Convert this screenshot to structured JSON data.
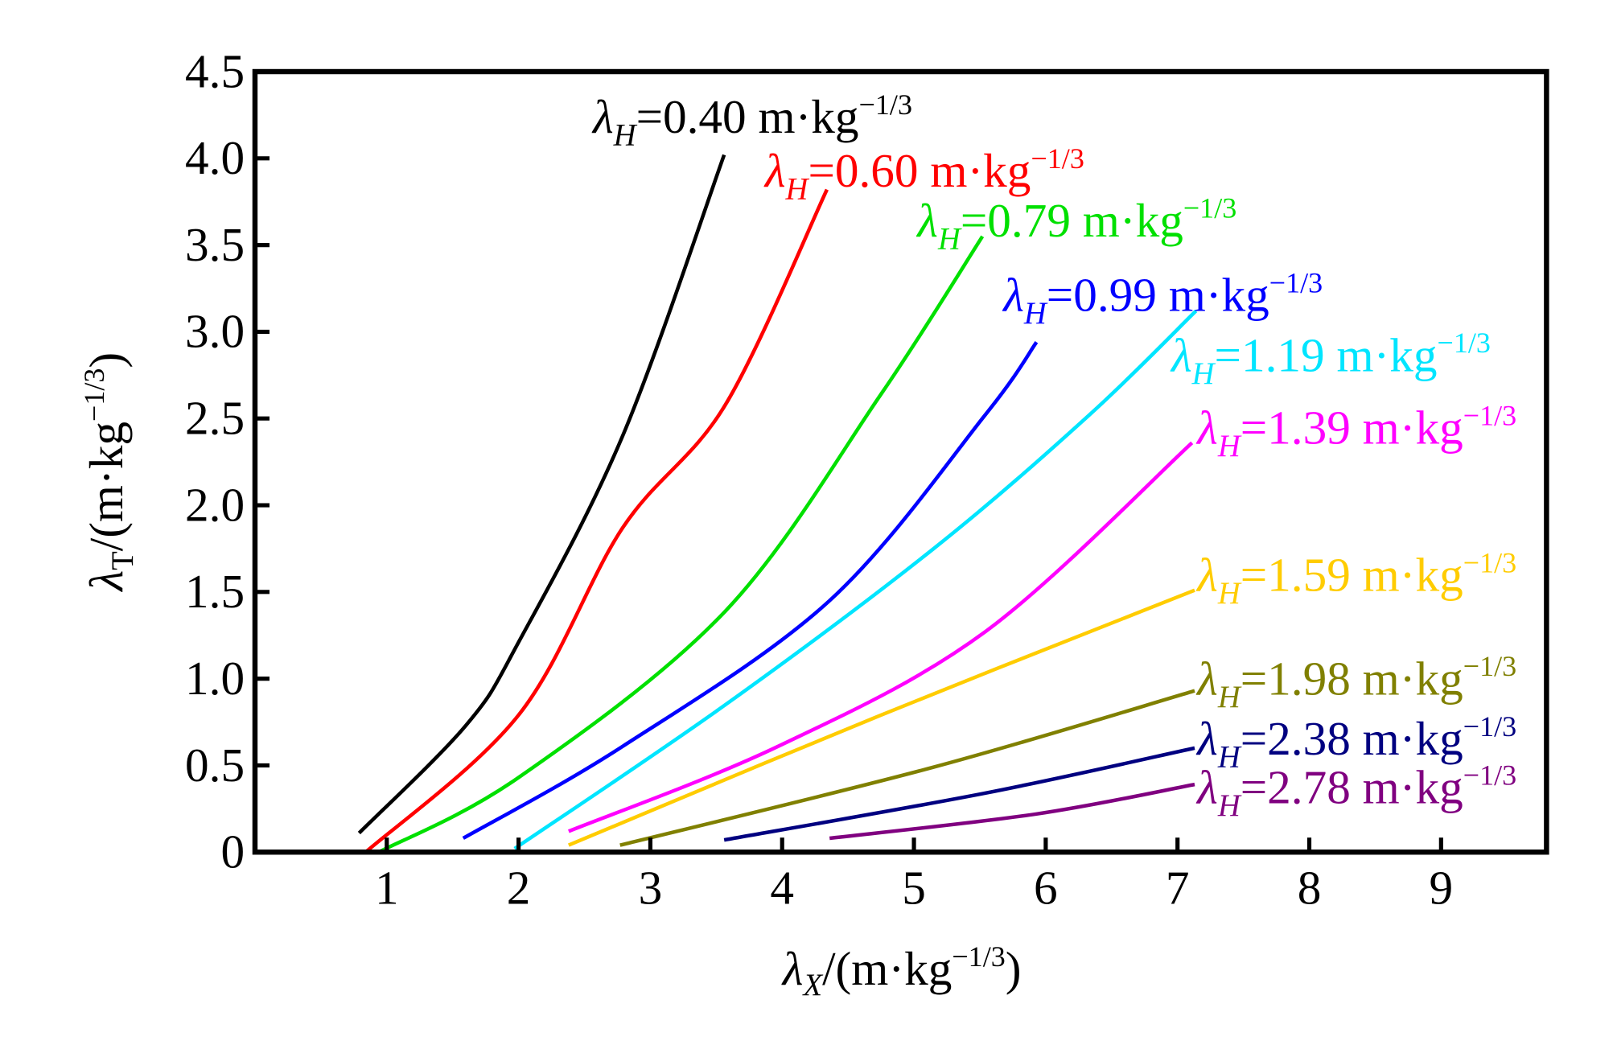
{
  "chart_data": {
    "type": "line",
    "title": "",
    "xlabel": {
      "symbol": "λ",
      "sub": "X",
      "unit": "/(m·kg",
      "exp": "−1/3",
      "close": ")"
    },
    "ylabel": {
      "symbol": "λ",
      "sub": "T",
      "unit": "/(m·kg",
      "exp": "−1/3",
      "close": ")"
    },
    "xlim": [
      0,
      9.8
    ],
    "ylim": [
      0,
      4.5
    ],
    "xticks": [
      1,
      2,
      3,
      4,
      5,
      6,
      7,
      8,
      9
    ],
    "xtick_labels": [
      "1",
      "2",
      "3",
      "4",
      "5",
      "6",
      "7",
      "8",
      "9"
    ],
    "yticks": [
      0,
      0.5,
      1.0,
      1.5,
      2.0,
      2.5,
      3.0,
      3.5,
      4.0,
      4.5
    ],
    "ytick_labels": [
      "0",
      "0.5",
      "1.0",
      "1.5",
      "2.0",
      "2.5",
      "3.0",
      "3.5",
      "4.0",
      "4.5"
    ],
    "grid": false,
    "series": [
      {
        "name": "λH=0.40 m·kg−1/3",
        "value": "=0.40 m·kg",
        "color": "#000000",
        "points": [
          [
            0.79,
            0.11
          ],
          [
            1.6,
            0.73
          ],
          [
            2.0,
            1.21
          ],
          [
            2.79,
            2.4
          ],
          [
            3.56,
            4.02
          ]
        ]
      },
      {
        "name": "λH=0.60 m·kg−1/3",
        "value": "=0.60 m·kg",
        "color": "#ff0000",
        "points": [
          [
            0.84,
            0.0
          ],
          [
            2.0,
            0.79
          ],
          [
            2.79,
            1.87
          ],
          [
            3.57,
            2.58
          ],
          [
            4.34,
            3.82
          ]
        ]
      },
      {
        "name": "λH=0.79 m·kg−1/3",
        "value": "=0.79 m·kg",
        "color": "#00e000",
        "points": [
          [
            0.94,
            0.0
          ],
          [
            2.0,
            0.43
          ],
          [
            3.57,
            1.39
          ],
          [
            4.75,
            2.64
          ],
          [
            5.52,
            3.55
          ]
        ]
      },
      {
        "name": "λH=0.99 m·kg−1/3",
        "value": "=0.99 m·kg",
        "color": "#0000ff",
        "points": [
          [
            1.58,
            0.08
          ],
          [
            2.79,
            0.61
          ],
          [
            4.36,
            1.45
          ],
          [
            5.54,
            2.52
          ],
          [
            5.93,
            2.94
          ]
        ]
      },
      {
        "name": "λH=1.19 m·kg−1/3",
        "value": "=1.19 m·kg",
        "color": "#00e5ff",
        "points": [
          [
            1.97,
            0.02
          ],
          [
            3.57,
            0.85
          ],
          [
            5.15,
            1.75
          ],
          [
            6.33,
            2.52
          ],
          [
            7.14,
            3.12
          ]
        ]
      },
      {
        "name": "λH=1.39 m·kg−1/3",
        "value": "=1.39 m·kg",
        "color": "#ff00ff",
        "points": [
          [
            2.38,
            0.12
          ],
          [
            3.97,
            0.61
          ],
          [
            5.54,
            1.27
          ],
          [
            7.11,
            2.36
          ]
        ]
      },
      {
        "name": "λH=1.59 m·kg−1/3",
        "value": "=1.59 m·kg",
        "color": "#ffcc00",
        "points": [
          [
            2.38,
            0.04
          ],
          [
            4.75,
            0.79
          ],
          [
            7.13,
            1.51
          ]
        ]
      },
      {
        "name": "λH=1.98 m·kg−1/3",
        "value": "=1.98 m·kg",
        "color": "#808000",
        "points": [
          [
            2.77,
            0.04
          ],
          [
            5.15,
            0.49
          ],
          [
            7.13,
            0.93
          ]
        ]
      },
      {
        "name": "λH=2.38 m·kg−1/3",
        "value": "=2.38 m·kg",
        "color": "#000080",
        "points": [
          [
            3.56,
            0.07
          ],
          [
            5.54,
            0.34
          ],
          [
            7.13,
            0.6
          ]
        ]
      },
      {
        "name": "λH=2.78 m·kg−1/3",
        "value": "=2.78 m·kg",
        "color": "#800080",
        "points": [
          [
            4.36,
            0.08
          ],
          [
            5.93,
            0.22
          ],
          [
            7.13,
            0.39
          ]
        ]
      }
    ],
    "label_symbol": "λ",
    "label_sub": "H",
    "label_exp": "−1/3"
  }
}
